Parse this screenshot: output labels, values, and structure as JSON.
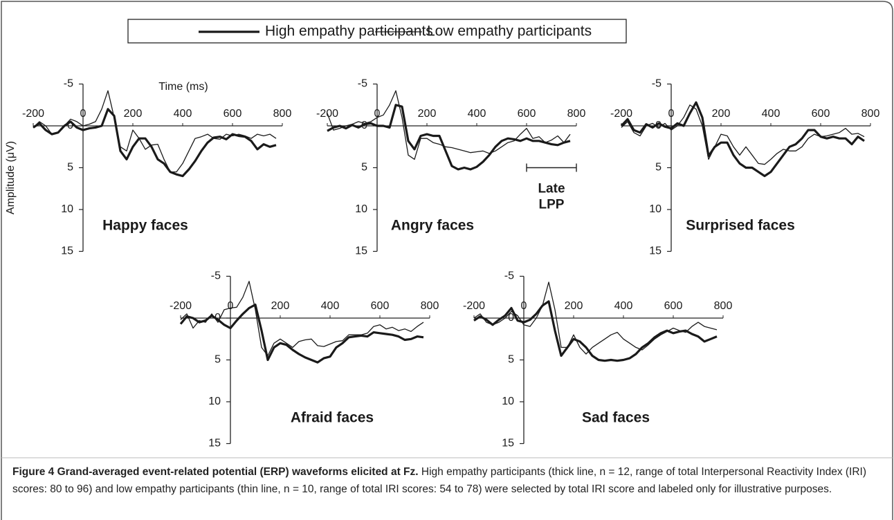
{
  "chart_data": [
    {
      "type": "line",
      "title": "Happy faces",
      "xlabel": "Time (ms)",
      "ylabel": "Amplitude (μV)",
      "x": [
        -200,
        -175,
        -150,
        -125,
        -100,
        -75,
        -50,
        -25,
        0,
        25,
        50,
        75,
        100,
        125,
        150,
        175,
        200,
        225,
        250,
        275,
        300,
        325,
        350,
        375,
        400,
        425,
        450,
        475,
        500,
        525,
        550,
        575,
        600,
        625,
        650,
        675,
        700,
        725,
        750,
        775
      ],
      "xlim": [
        -200,
        800
      ],
      "xticks": [
        -200,
        0,
        200,
        400,
        600,
        800
      ],
      "ylim": [
        -5,
        15
      ],
      "yticks": [
        -5,
        0,
        5,
        10,
        15
      ],
      "y_inverted": true,
      "series": [
        {
          "name": "High empathy participants",
          "color": "#1a1a1a",
          "width": 3.2,
          "values": [
            0.2,
            -0.3,
            0.5,
            1.0,
            0.8,
            0,
            -0.5,
            0.2,
            0.5,
            0.3,
            0.2,
            0,
            -2,
            -1.2,
            3.0,
            4,
            2.5,
            1.5,
            1.5,
            2.5,
            4,
            4.5,
            5.5,
            5.8,
            6.0,
            5.2,
            4.2,
            3.0,
            2.0,
            1.4,
            1.3,
            1.6,
            1.0,
            1.2,
            1.3,
            1.8,
            2.8,
            2.2,
            2.5,
            2.3
          ]
        },
        {
          "name": "Low empathy participants",
          "color": "#1a1a1a",
          "width": 1.3,
          "values": [
            0.2,
            -0.5,
            0,
            1.0,
            0.8,
            0,
            -0.8,
            -0.5,
            0,
            -0.2,
            -0.5,
            -2,
            -4.2,
            -1,
            2.5,
            3,
            0.5,
            1.5,
            2.8,
            2.3,
            2.2,
            4,
            5.5,
            5.5,
            4.5,
            3,
            1.5,
            1.3,
            1.0,
            1.5,
            1.6,
            1.0,
            1.2,
            1.0,
            1.2,
            1.5,
            1.0,
            1.2,
            1.0,
            1.5
          ]
        }
      ]
    },
    {
      "type": "line",
      "title": "Angry faces",
      "x": [
        -200,
        -175,
        -150,
        -125,
        -100,
        -75,
        -50,
        -25,
        0,
        25,
        50,
        75,
        100,
        125,
        150,
        175,
        200,
        225,
        250,
        275,
        300,
        325,
        350,
        375,
        400,
        425,
        450,
        475,
        500,
        525,
        550,
        575,
        600,
        625,
        650,
        675,
        700,
        725,
        750,
        775
      ],
      "xlim": [
        -200,
        800
      ],
      "xticks": [
        -200,
        0,
        200,
        400,
        600,
        800
      ],
      "ylim": [
        -5,
        15
      ],
      "yticks": [
        -5,
        0,
        5,
        10,
        15
      ],
      "y_inverted": true,
      "annotation": {
        "lines": [
          "Late",
          "LPP"
        ],
        "range": [
          600,
          800
        ],
        "y": 5
      },
      "series": [
        {
          "color": "#1a1a1a",
          "width": 3.2,
          "values": [
            0.6,
            0.2,
            0,
            0.3,
            -0.1,
            0.2,
            -0.2,
            -0.3,
            0,
            0,
            0.2,
            -2.5,
            -2.3,
            1.8,
            2.8,
            1.2,
            1.0,
            1.2,
            1.2,
            3,
            4.8,
            5.2,
            5.0,
            5.2,
            4.9,
            4.3,
            3.5,
            2.5,
            1.8,
            1.5,
            1.6,
            1.8,
            1.5,
            1.8,
            1.8,
            2.0,
            2.2,
            2.3,
            2.0,
            1.8
          ]
        },
        {
          "color": "#1a1a1a",
          "width": 1.3,
          "values": [
            -1.5,
            0.5,
            0.3,
            0,
            -0.2,
            -0.5,
            -0.3,
            -0.5,
            -1,
            -1.3,
            -2.5,
            -4.2,
            -1.0,
            3.5,
            4,
            1.5,
            1.5,
            2,
            2.2,
            2.5,
            2.6,
            2.8,
            3.0,
            3.2,
            3.1,
            3.0,
            3.3,
            3.0,
            2.5,
            2.0,
            1.8,
            1.0,
            0.3,
            1.5,
            1.3,
            2.0,
            1.7,
            1.2,
            2.0,
            1.0
          ]
        }
      ]
    },
    {
      "type": "line",
      "title": "Surprised faces",
      "x": [
        -200,
        -175,
        -150,
        -125,
        -100,
        -75,
        -50,
        -25,
        0,
        25,
        50,
        75,
        100,
        125,
        150,
        175,
        200,
        225,
        250,
        275,
        300,
        325,
        350,
        375,
        400,
        425,
        450,
        475,
        500,
        525,
        550,
        575,
        600,
        625,
        650,
        675,
        700,
        725,
        750,
        775
      ],
      "xlim": [
        -200,
        800
      ],
      "xticks": [
        -200,
        0,
        200,
        400,
        600,
        800
      ],
      "ylim": [
        -5,
        15
      ],
      "yticks": [
        -5,
        0,
        5,
        10,
        15
      ],
      "y_inverted": true,
      "series": [
        {
          "color": "#1a1a1a",
          "width": 3.2,
          "values": [
            0,
            -0.8,
            0.5,
            0.8,
            -0.2,
            0.2,
            -0.3,
            0.1,
            0.3,
            -0.3,
            0,
            -1.5,
            -2.8,
            -1,
            3.6,
            2.5,
            2,
            2,
            3.5,
            4.5,
            5,
            5,
            5.5,
            6,
            5.5,
            4.5,
            3.5,
            2.5,
            2.2,
            1.5,
            0.5,
            0.5,
            1.3,
            1.5,
            1.3,
            1.5,
            1.5,
            2.2,
            1.3,
            1.8
          ]
        },
        {
          "color": "#1a1a1a",
          "width": 1.3,
          "values": [
            0.2,
            -0.5,
            0.8,
            1.2,
            0,
            -0.3,
            0.2,
            -0.3,
            0.5,
            0,
            -1,
            -2.5,
            -2,
            0,
            4,
            2.5,
            1,
            1.2,
            2.5,
            3.5,
            2.5,
            3.5,
            4.5,
            4.6,
            4,
            3.3,
            2.8,
            3,
            3,
            2.5,
            1.5,
            1.0,
            1.3,
            1.2,
            1.0,
            0.8,
            0.3,
            1.0,
            0.9,
            1.3
          ]
        }
      ]
    },
    {
      "type": "line",
      "title": "Afraid faces",
      "x": [
        -200,
        -175,
        -150,
        -125,
        -100,
        -75,
        -50,
        -25,
        0,
        25,
        50,
        75,
        100,
        125,
        150,
        175,
        200,
        225,
        250,
        275,
        300,
        325,
        350,
        375,
        400,
        425,
        450,
        475,
        500,
        525,
        550,
        575,
        600,
        625,
        650,
        675,
        700,
        725,
        750,
        775
      ],
      "xlim": [
        -200,
        800
      ],
      "xticks": [
        -200,
        0,
        200,
        400,
        600,
        800
      ],
      "ylim": [
        -5,
        15
      ],
      "yticks": [
        -5,
        0,
        5,
        10,
        15
      ],
      "y_inverted": true,
      "series": [
        {
          "color": "#1a1a1a",
          "width": 3.2,
          "values": [
            0.7,
            -0.2,
            0,
            0.5,
            0.3,
            -0.3,
            0.2,
            0.8,
            1.2,
            0.3,
            -0.5,
            -1.2,
            -1.6,
            1.5,
            5,
            3.5,
            3,
            3.2,
            3.8,
            4.3,
            4.7,
            5,
            5.3,
            4.8,
            4.6,
            3.5,
            3,
            2.3,
            2.2,
            2.1,
            2.2,
            1.7,
            1.8,
            1.9,
            2.0,
            2.2,
            2.6,
            2.5,
            2.2,
            2.3
          ]
        },
        {
          "color": "#1a1a1a",
          "width": 1.3,
          "values": [
            0.2,
            -0.5,
            1.2,
            0.3,
            0.5,
            -0.5,
            0.5,
            -1.0,
            -1.2,
            -1.3,
            -2.5,
            -4.4,
            -1.0,
            3.5,
            4.5,
            3,
            2.5,
            3,
            3.5,
            2.8,
            2.6,
            2.5,
            3.3,
            3.4,
            3.1,
            2.8,
            2.7,
            2.0,
            2.0,
            2.0,
            1.8,
            1.0,
            0.8,
            1.3,
            1.1,
            1.5,
            1.3,
            1.6,
            1.0,
            0.5
          ]
        }
      ]
    },
    {
      "type": "line",
      "title": "Sad faces",
      "x": [
        -200,
        -175,
        -150,
        -125,
        -100,
        -75,
        -50,
        -25,
        0,
        25,
        50,
        75,
        100,
        125,
        150,
        175,
        200,
        225,
        250,
        275,
        300,
        325,
        350,
        375,
        400,
        425,
        450,
        475,
        500,
        525,
        550,
        575,
        600,
        625,
        650,
        675,
        700,
        725,
        750,
        775
      ],
      "xlim": [
        -200,
        800
      ],
      "xticks": [
        -200,
        0,
        200,
        400,
        600,
        800
      ],
      "ylim": [
        -5,
        15
      ],
      "yticks": [
        -5,
        0,
        5,
        10,
        15
      ],
      "y_inverted": true,
      "series": [
        {
          "color": "#1a1a1a",
          "width": 3.2,
          "values": [
            0.3,
            -0.2,
            0.2,
            0.8,
            0.2,
            -0.3,
            -1.2,
            0.3,
            0.5,
            0.2,
            -0.5,
            -1.5,
            -2.0,
            1.5,
            4.5,
            3.5,
            2.5,
            2.8,
            3.5,
            4.5,
            5.0,
            5.1,
            5.0,
            5.1,
            5.0,
            4.8,
            4.3,
            3.5,
            3.0,
            2.3,
            1.8,
            1.5,
            1.8,
            1.6,
            1.5,
            1.9,
            2.2,
            2.8,
            2.5,
            2.2
          ]
        },
        {
          "color": "#1a1a1a",
          "width": 1.3,
          "values": [
            0,
            -0.5,
            0.5,
            0.8,
            0.5,
            0,
            -0.8,
            -0.3,
            0.8,
            1.0,
            0,
            -1.5,
            -4.3,
            -1.0,
            3.5,
            3.5,
            2,
            3.5,
            4.3,
            3.5,
            3,
            2.5,
            2,
            1.7,
            2.5,
            3,
            3.5,
            3.8,
            3.2,
            2.5,
            2.0,
            1.6,
            1.2,
            1.5,
            1.7,
            1.0,
            0.5,
            1.0,
            1.2,
            1.4
          ]
        }
      ]
    }
  ],
  "caption": {
    "label": "Figure 4 Grand-averaged event-related potential (ERP) waveforms elicited at Fz.",
    "text": "High empathy participants (thick line, n = 12, range of total Interpersonal Reactivity Index (IRI) scores: 80 to 96) and low empathy participants (thin line, n = 10, range of total IRI scores: 54 to 78) were selected by total IRI score and labeled only for illustrative purposes."
  }
}
